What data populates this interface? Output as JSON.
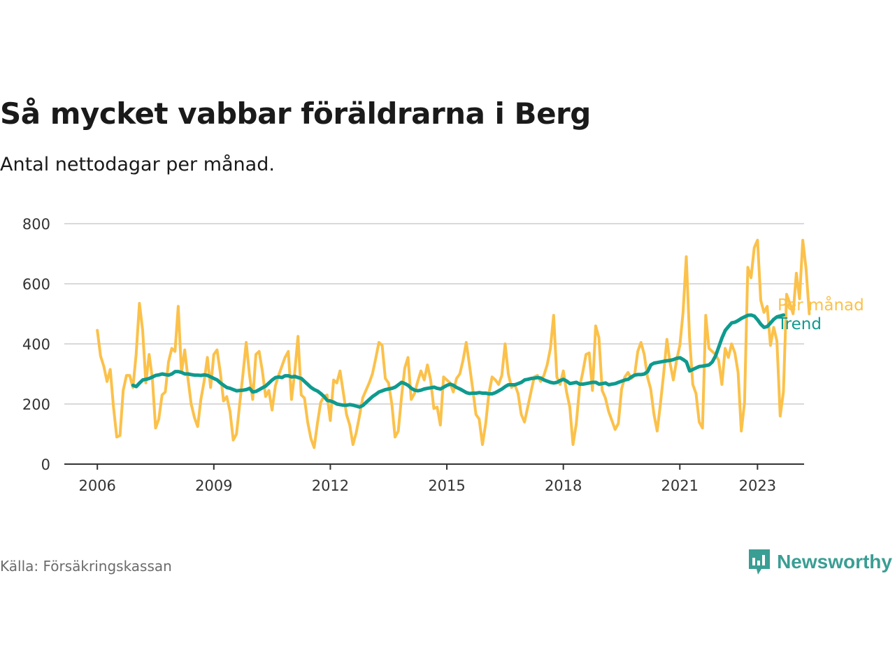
{
  "header": {
    "title": "Så mycket vabbar föräldrarna i Berg",
    "subtitle": "Antal nettodagar per månad."
  },
  "footer": {
    "source": "Källa: Försäkringskassan",
    "brand": "Newsworthy"
  },
  "colors": {
    "monthly": "#fbc14a",
    "trend": "#0f9a8e",
    "grid": "#d9d9d9",
    "axis": "#333333",
    "brand": "#3a9e94"
  },
  "chart_data": {
    "type": "line",
    "title": "Så mycket vabbar föräldrarna i Berg",
    "subtitle": "Antal nettodagar per månad.",
    "xlabel": "",
    "ylabel": "",
    "ylim": [
      0,
      800
    ],
    "xlim": [
      2005.15,
      2024.2
    ],
    "yticks": [
      0,
      200,
      400,
      600,
      800
    ],
    "xticks": [
      2006,
      2009,
      2012,
      2015,
      2018,
      2021,
      2023
    ],
    "grid": true,
    "legend": "end-of-line labels, right",
    "start": 2006,
    "step": 0.0833333,
    "series": [
      {
        "name": "Per månad",
        "values": [
          445,
          360,
          325,
          275,
          315,
          190,
          90,
          95,
          245,
          295,
          295,
          255,
          365,
          535,
          445,
          270,
          365,
          285,
          120,
          150,
          230,
          240,
          340,
          385,
          375,
          525,
          305,
          380,
          285,
          200,
          155,
          125,
          215,
          275,
          355,
          255,
          365,
          380,
          305,
          210,
          225,
          175,
          80,
          100,
          200,
          300,
          405,
          300,
          215,
          365,
          375,
          310,
          225,
          245,
          180,
          260,
          295,
          325,
          355,
          375,
          215,
          305,
          425,
          230,
          220,
          140,
          85,
          55,
          135,
          205,
          225,
          230,
          145,
          280,
          270,
          310,
          240,
          165,
          130,
          65,
          105,
          160,
          220,
          245,
          270,
          300,
          350,
          405,
          395,
          285,
          270,
          200,
          90,
          110,
          225,
          320,
          355,
          215,
          235,
          275,
          310,
          280,
          330,
          280,
          185,
          190,
          130,
          290,
          280,
          270,
          240,
          285,
          300,
          345,
          405,
          330,
          250,
          165,
          150,
          65,
          135,
          235,
          290,
          280,
          265,
          295,
          400,
          300,
          255,
          265,
          235,
          165,
          140,
          190,
          240,
          290,
          295,
          275,
          295,
          330,
          385,
          495,
          290,
          265,
          310,
          240,
          190,
          65,
          135,
          255,
          305,
          365,
          370,
          245,
          460,
          420,
          245,
          220,
          175,
          145,
          115,
          135,
          250,
          290,
          305,
          285,
          295,
          375,
          405,
          365,
          290,
          250,
          165,
          110,
          200,
          300,
          415,
          335,
          280,
          345,
          395,
          505,
          690,
          420,
          265,
          235,
          140,
          120,
          495,
          385,
          375,
          365,
          345,
          265,
          385,
          355,
          400,
          370,
          305,
          110,
          205,
          655,
          620,
          720,
          745,
          545,
          505,
          525,
          395,
          455,
          410,
          160,
          240,
          565,
          535,
          500,
          635,
          550,
          745,
          650,
          500
        ],
        "color": "#fbc14a"
      },
      {
        "name": "Trend",
        "values": [
          262,
          258,
          270,
          280,
          282,
          285,
          290,
          295,
          297,
          300,
          298,
          296,
          300,
          308,
          308,
          305,
          300,
          300,
          298,
          296,
          296,
          295,
          297,
          295,
          290,
          285,
          280,
          270,
          262,
          255,
          252,
          248,
          244,
          245,
          246,
          248,
          252,
          240,
          242,
          248,
          254,
          260,
          270,
          280,
          288,
          290,
          288,
          294,
          294,
          290,
          292,
          288,
          285,
          275,
          265,
          255,
          248,
          243,
          235,
          225,
          212,
          210,
          206,
          200,
          198,
          196,
          196,
          198,
          196,
          193,
          190,
          195,
          205,
          215,
          225,
          232,
          240,
          244,
          248,
          250,
          252,
          256,
          264,
          272,
          268,
          262,
          252,
          246,
          244,
          246,
          250,
          252,
          254,
          256,
          252,
          250,
          256,
          262,
          266,
          262,
          255,
          250,
          244,
          238,
          235,
          236,
          236,
          238,
          236,
          236,
          234,
          234,
          238,
          244,
          250,
          258,
          264,
          264,
          264,
          268,
          272,
          280,
          282,
          285,
          286,
          288,
          286,
          280,
          276,
          272,
          270,
          272,
          278,
          282,
          276,
          268,
          270,
          272,
          266,
          266,
          268,
          270,
          272,
          272,
          266,
          268,
          270,
          264,
          266,
          268,
          272,
          276,
          280,
          282,
          290,
          296,
          298,
          298,
          300,
          308,
          330,
          336,
          338,
          340,
          342,
          344,
          345,
          348,
          352,
          354,
          348,
          340,
          310,
          315,
          320,
          325,
          326,
          328,
          330,
          340,
          360,
          390,
          420,
          445,
          458,
          470,
          472,
          478,
          485,
          490,
          495,
          496,
          492,
          480,
          465,
          455,
          458,
          470,
          482,
          490,
          493,
          496
        ],
        "color": "#0f9a8e"
      }
    ],
    "trend_start": 2006.92
  }
}
